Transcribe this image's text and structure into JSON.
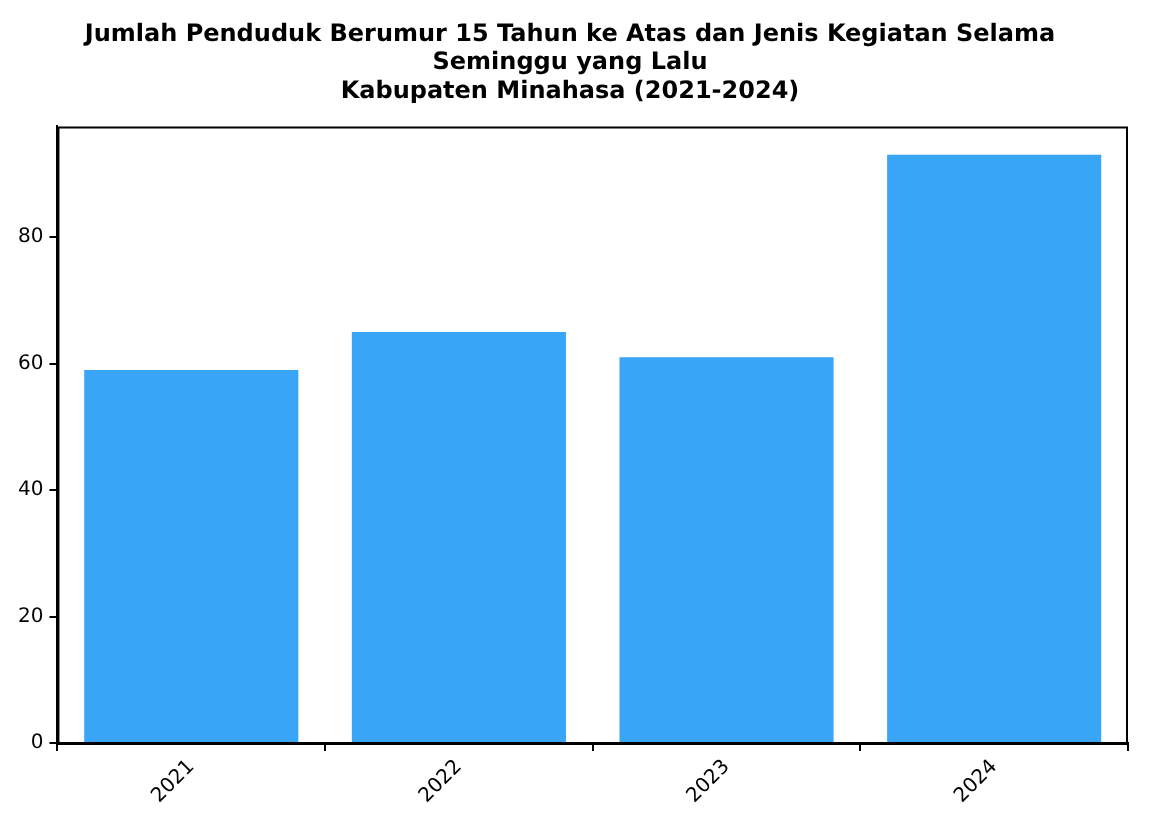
{
  "chart_data": {
    "type": "bar",
    "title": "Jumlah Penduduk Berumur 15 Tahun ke Atas dan Jenis Kegiatan Selama\nSeminggu yang Lalu\nKabupaten Minahasa (2021-2024)",
    "categories": [
      "2021",
      "2022",
      "2023",
      "2024"
    ],
    "values": [
      59,
      65,
      61,
      93
    ],
    "color": "#39a5f7",
    "ylim": [
      0,
      97.5
    ],
    "yticks": [
      0,
      20,
      40,
      60,
      80
    ],
    "grid": false
  }
}
